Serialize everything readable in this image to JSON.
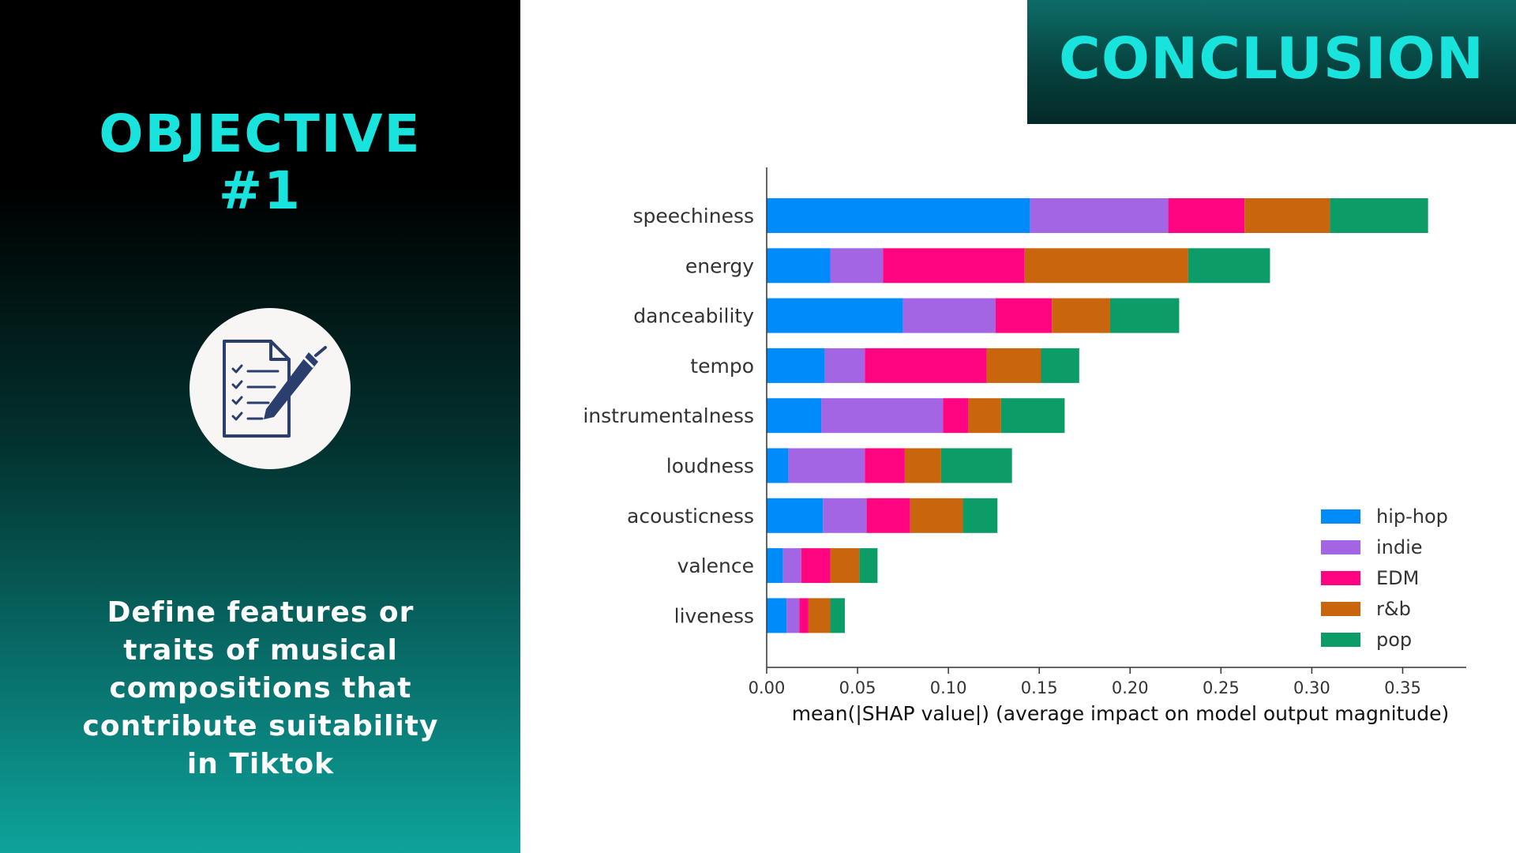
{
  "objective": {
    "title_line1": "OBJECTIVE",
    "title_line2": "#1",
    "icon": "checklist-pen-icon",
    "description_lines": [
      "Define  features or",
      "traits of musical",
      "compositions that",
      "contribute  suitability",
      "in Tiktok"
    ]
  },
  "conclusion": {
    "title": "CONCLUSION"
  },
  "colors": {
    "accent": "#19e3dd",
    "panel_dark": "#000000",
    "panel_teal": "#0ea39c"
  },
  "chart_data": {
    "type": "bar",
    "orientation": "horizontal",
    "stacked": true,
    "title": "",
    "xlabel": "mean(|SHAP value|) (average impact on model output magnitude)",
    "ylabel": "",
    "xlim": [
      0,
      0.385
    ],
    "xticks": [
      0.0,
      0.05,
      0.1,
      0.15,
      0.2,
      0.25,
      0.3,
      0.35
    ],
    "xtick_labels": [
      "0.00",
      "0.05",
      "0.10",
      "0.15",
      "0.20",
      "0.25",
      "0.30",
      "0.35"
    ],
    "grid": false,
    "legend_position": "lower-right",
    "categories": [
      "speechiness",
      "energy",
      "danceability",
      "tempo",
      "instrumentalness",
      "loudness",
      "acousticness",
      "valence",
      "liveness"
    ],
    "series": [
      {
        "name": "hip-hop",
        "color": "#008bfb",
        "values": [
          0.145,
          0.035,
          0.075,
          0.032,
          0.03,
          0.012,
          0.031,
          0.009,
          0.011
        ]
      },
      {
        "name": "indie",
        "color": "#a365e4",
        "values": [
          0.076,
          0.029,
          0.051,
          0.022,
          0.067,
          0.042,
          0.024,
          0.01,
          0.007
        ]
      },
      {
        "name": "EDM",
        "color": "#ff0582",
        "values": [
          0.042,
          0.078,
          0.031,
          0.067,
          0.014,
          0.022,
          0.024,
          0.016,
          0.005
        ]
      },
      {
        "name": "r&b",
        "color": "#c9650c",
        "values": [
          0.047,
          0.09,
          0.032,
          0.03,
          0.018,
          0.02,
          0.029,
          0.016,
          0.012
        ]
      },
      {
        "name": "pop",
        "color": "#0c9c68",
        "values": [
          0.054,
          0.045,
          0.038,
          0.021,
          0.035,
          0.039,
          0.019,
          0.01,
          0.008
        ]
      }
    ]
  }
}
